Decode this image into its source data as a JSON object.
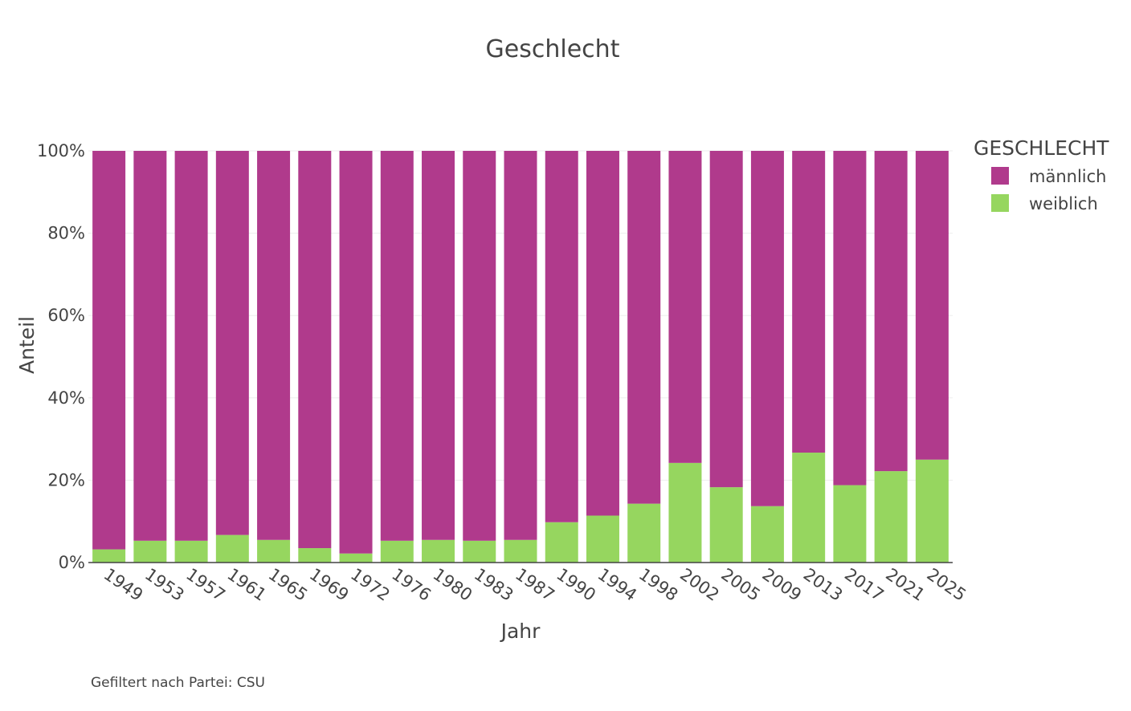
{
  "chart_data": {
    "type": "bar",
    "stacked": true,
    "title": "Geschlecht",
    "xlabel": "Jahr",
    "ylabel": "Anteil",
    "ylim": [
      0,
      100
    ],
    "y_ticks": [
      "0%",
      "20%",
      "40%",
      "60%",
      "80%",
      "100%"
    ],
    "grid": true,
    "legend": {
      "title": "GESCHLECHT",
      "placement": "top-right"
    },
    "categories": [
      "1949",
      "1953",
      "1957",
      "1961",
      "1965",
      "1969",
      "1972",
      "1976",
      "1980",
      "1983",
      "1987",
      "1990",
      "1994",
      "1998",
      "2002",
      "2005",
      "2009",
      "2013",
      "2017",
      "2021",
      "2025"
    ],
    "series": [
      {
        "name": "weiblich",
        "color": "#96d65f",
        "values": [
          3.2,
          5.3,
          5.3,
          6.7,
          5.5,
          3.5,
          2.2,
          5.3,
          5.5,
          5.3,
          5.5,
          9.8,
          11.4,
          14.3,
          24.2,
          18.3,
          13.7,
          26.7,
          18.8,
          22.2,
          25.0
        ]
      },
      {
        "name": "männlich",
        "color": "#b03a8c",
        "values": [
          96.8,
          94.7,
          94.7,
          93.3,
          94.5,
          96.5,
          97.8,
          94.7,
          94.5,
          94.7,
          94.5,
          90.2,
          88.6,
          85.7,
          75.8,
          81.7,
          86.3,
          73.3,
          81.2,
          77.8,
          75.0
        ]
      }
    ],
    "legend_order": [
      "männlich",
      "weiblich"
    ]
  },
  "footnote": "Gefiltert nach Partei: CSU"
}
